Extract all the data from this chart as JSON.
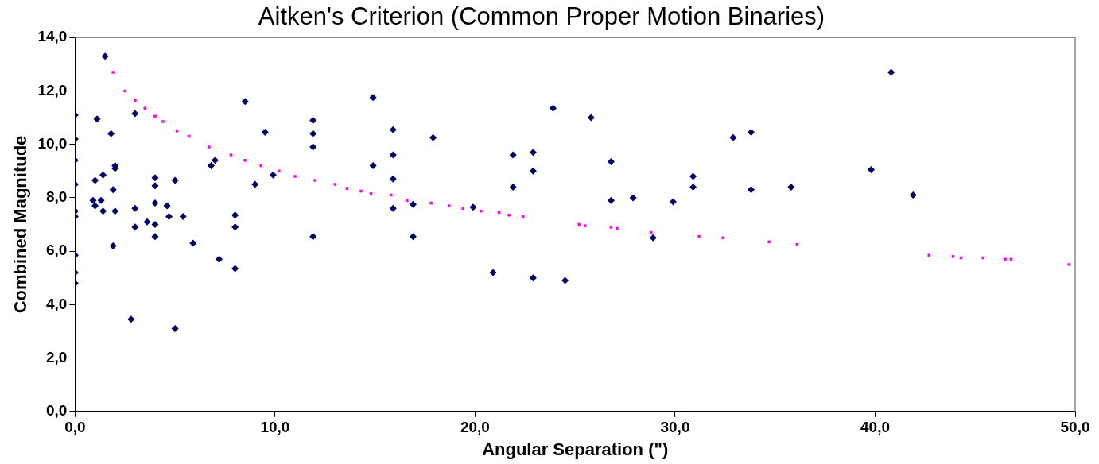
{
  "chart_data": {
    "type": "scatter",
    "title": "Aitken's Criterion (Common Proper Motion Binaries)",
    "xlabel": "Angular Separation (\")",
    "ylabel": "Combined Magnitude",
    "xlim": [
      0,
      50
    ],
    "xticks": [
      {
        "value": 0,
        "label": "0,0"
      },
      {
        "value": 10,
        "label": "10,0"
      },
      {
        "value": 20,
        "label": "20,0"
      },
      {
        "value": 30,
        "label": "30,0"
      },
      {
        "value": 40,
        "label": "40,0"
      },
      {
        "value": 50,
        "label": "50,0"
      }
    ],
    "ylim": [
      0,
      14
    ],
    "yticks": [
      {
        "value": 0,
        "label": "0,0"
      },
      {
        "value": 2,
        "label": "2,0"
      },
      {
        "value": 4,
        "label": "4,0"
      },
      {
        "value": 6,
        "label": "6,0"
      },
      {
        "value": 8,
        "label": "8,0"
      },
      {
        "value": 10,
        "label": "10,0"
      },
      {
        "value": 12,
        "label": "12,0"
      },
      {
        "value": 14,
        "label": "14,0"
      }
    ],
    "grid": false,
    "legend": false,
    "marker": "diamond",
    "series": [
      {
        "color": "#000066",
        "x": [
          0,
          0,
          0,
          0,
          0,
          0,
          0,
          0,
          0,
          1.5,
          1.1,
          1.8,
          1.0,
          1.4,
          2.0,
          2.0,
          1.9,
          0.9,
          1.3,
          1.0,
          1.4,
          2.0,
          1.9,
          2.8,
          3.0,
          3.0,
          3.0,
          3.6,
          4.0,
          4.0,
          4.0,
          4.0,
          4.0,
          4.6,
          4.7,
          5.0,
          5.4,
          5.0,
          5.9,
          6.8,
          7.0,
          8.5,
          9.5,
          9.0,
          9.9,
          8.0,
          8.0,
          7.2,
          8.0,
          11.9,
          11.9,
          11.9,
          11.9,
          14.9,
          14.9,
          15.9,
          15.9,
          15.9,
          15.9,
          16.9,
          16.9,
          17.9,
          19.9,
          21.9,
          21.9,
          20.9,
          22.9,
          22.9,
          22.9,
          23.9,
          24.5,
          25.8,
          26.8,
          26.8,
          27.9,
          28.9,
          29.9,
          30.9,
          30.9,
          32.9,
          33.8,
          33.8,
          35.8,
          39.8,
          40.8,
          41.9
        ],
        "values": [
          11.1,
          10.2,
          9.4,
          8.5,
          7.5,
          7.3,
          5.85,
          5.2,
          4.8,
          13.3,
          10.95,
          10.4,
          8.65,
          8.85,
          9.2,
          9.1,
          8.3,
          7.9,
          7.9,
          7.7,
          7.5,
          7.5,
          6.2,
          3.45,
          11.15,
          7.6,
          6.9,
          7.1,
          8.75,
          8.45,
          7.8,
          7.0,
          6.55,
          7.7,
          7.3,
          8.65,
          7.3,
          3.1,
          6.3,
          9.2,
          9.4,
          11.6,
          10.45,
          8.5,
          8.85,
          7.35,
          6.9,
          5.7,
          5.35,
          10.9,
          10.4,
          9.9,
          6.55,
          11.75,
          9.2,
          10.55,
          9.6,
          8.7,
          7.6,
          7.75,
          6.55,
          10.25,
          7.65,
          9.6,
          8.4,
          5.2,
          9.7,
          9.0,
          5.0,
          11.35,
          4.9,
          11.0,
          9.35,
          7.9,
          8.0,
          6.5,
          7.85,
          8.8,
          8.4,
          10.25,
          10.45,
          8.3,
          8.4,
          9.05,
          12.7,
          8.1
        ]
      },
      {
        "color": "#ff00ff",
        "marker": "square",
        "x": [
          1.9,
          2.5,
          3.0,
          3.5,
          4.0,
          4.4,
          5.1,
          5.7,
          6.7,
          7.8,
          8.5,
          9.3,
          10.2,
          11.0,
          12.0,
          13.0,
          13.6,
          14.3,
          14.8,
          15.8,
          16.6,
          17.8,
          18.7,
          19.4,
          20.3,
          21.2,
          21.7,
          22.4,
          25.2,
          25.5,
          26.8,
          27.1,
          28.8,
          31.2,
          32.4,
          34.7,
          36.1,
          42.7,
          43.9,
          44.3,
          45.4,
          46.5,
          46.8,
          49.7
        ],
        "values": [
          12.7,
          12.0,
          11.65,
          11.35,
          11.05,
          10.85,
          10.5,
          10.3,
          9.9,
          9.6,
          9.4,
          9.2,
          9.0,
          8.8,
          8.65,
          8.5,
          8.35,
          8.25,
          8.15,
          8.1,
          7.9,
          7.8,
          7.7,
          7.6,
          7.5,
          7.45,
          7.35,
          7.3,
          7.0,
          6.95,
          6.9,
          6.85,
          6.7,
          6.55,
          6.5,
          6.35,
          6.25,
          5.85,
          5.8,
          5.75,
          5.75,
          5.7,
          5.7,
          5.5
        ]
      }
    ]
  }
}
